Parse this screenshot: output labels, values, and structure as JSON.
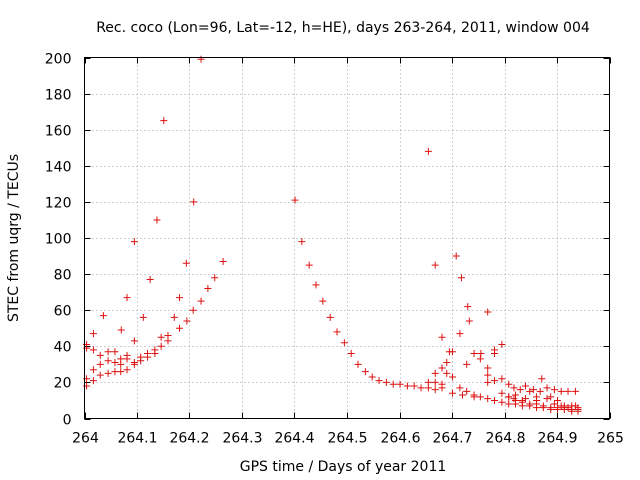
{
  "colors": {
    "points": "#dd1111",
    "axis": "#000000",
    "grid": "#a0a0a0",
    "background": "#ffffff"
  },
  "chart_data": {
    "type": "scatter",
    "title": "Rec. coco (Lon=96, Lat=-12, h=HE), days 263-264, 2011, window 004",
    "xlabel": "GPS time / Days of year 2011",
    "ylabel": "STEC from uqrg / TECUs",
    "xlim": [
      264,
      265
    ],
    "ylim": [
      0,
      200
    ],
    "grid": true,
    "marker": "+",
    "xticks": [
      {
        "value": 264,
        "label": "264"
      },
      {
        "value": 264.1,
        "label": "264.1"
      },
      {
        "value": 264.2,
        "label": "264.2"
      },
      {
        "value": 264.3,
        "label": "264.3"
      },
      {
        "value": 264.4,
        "label": "264.4"
      },
      {
        "value": 264.5,
        "label": "264.5"
      },
      {
        "value": 264.6,
        "label": "264.6"
      },
      {
        "value": 264.7,
        "label": "264.7"
      },
      {
        "value": 264.8,
        "label": "264.8"
      },
      {
        "value": 264.9,
        "label": "264.9"
      },
      {
        "value": 265,
        "label": "265"
      }
    ],
    "yticks": [
      {
        "value": 0,
        "label": "0"
      },
      {
        "value": 20,
        "label": "20"
      },
      {
        "value": 40,
        "label": "40"
      },
      {
        "value": 60,
        "label": "60"
      },
      {
        "value": 80,
        "label": "80"
      },
      {
        "value": 100,
        "label": "100"
      },
      {
        "value": 120,
        "label": "120"
      },
      {
        "value": 140,
        "label": "140"
      },
      {
        "value": 160,
        "label": "160"
      },
      {
        "value": 180,
        "label": "180"
      },
      {
        "value": 200,
        "label": "200"
      }
    ],
    "series": [
      {
        "name": "STEC",
        "points": [
          [
            264.004,
            41
          ],
          [
            264.017,
            47
          ],
          [
            264.036,
            57
          ],
          [
            264.07,
            49
          ],
          [
            264.081,
            67
          ],
          [
            264.095,
            98
          ],
          [
            264.112,
            56
          ],
          [
            264.125,
            77
          ],
          [
            264.138,
            110
          ],
          [
            264.151,
            165
          ],
          [
            264.181,
            67
          ],
          [
            264.194,
            86
          ],
          [
            264.208,
            120
          ],
          [
            264.222,
            199
          ],
          [
            264.004,
            39
          ],
          [
            264.017,
            38
          ],
          [
            264.03,
            35
          ],
          [
            264.045,
            37
          ],
          [
            264.058,
            37
          ],
          [
            264.069,
            33
          ],
          [
            264.081,
            35
          ],
          [
            264.095,
            43
          ],
          [
            264.107,
            34
          ],
          [
            264.12,
            36
          ],
          [
            264.134,
            38
          ],
          [
            264.146,
            40
          ],
          [
            264.159,
            46
          ],
          [
            264.171,
            56
          ],
          [
            264.181,
            50
          ],
          [
            264.195,
            54
          ],
          [
            264.207,
            60
          ],
          [
            264.222,
            65
          ],
          [
            264.235,
            72
          ],
          [
            264.248,
            78
          ],
          [
            264.264,
            87
          ],
          [
            264.004,
            22
          ],
          [
            264.017,
            27
          ],
          [
            264.03,
            30
          ],
          [
            264.045,
            32
          ],
          [
            264.058,
            31
          ],
          [
            264.069,
            30
          ],
          [
            264.081,
            33
          ],
          [
            264.095,
            31
          ],
          [
            264.107,
            32
          ],
          [
            264.12,
            34
          ],
          [
            264.134,
            36
          ],
          [
            264.146,
            45
          ],
          [
            264.159,
            43
          ],
          [
            264.004,
            18
          ],
          [
            264.017,
            21
          ],
          [
            264.03,
            24
          ],
          [
            264.045,
            25
          ],
          [
            264.058,
            26
          ],
          [
            264.069,
            26
          ],
          [
            264.081,
            27
          ],
          [
            264.095,
            30
          ],
          [
            264.401,
            121
          ],
          [
            264.414,
            98
          ],
          [
            264.428,
            85
          ],
          [
            264.441,
            74
          ],
          [
            264.454,
            65
          ],
          [
            264.468,
            56
          ],
          [
            264.481,
            48
          ],
          [
            264.495,
            42
          ],
          [
            264.508,
            36
          ],
          [
            264.521,
            30
          ],
          [
            264.535,
            26
          ],
          [
            264.548,
            23
          ],
          [
            264.561,
            21
          ],
          [
            264.575,
            20
          ],
          [
            264.588,
            19
          ],
          [
            264.601,
            19
          ],
          [
            264.615,
            18
          ],
          [
            264.628,
            18
          ],
          [
            264.641,
            17
          ],
          [
            264.655,
            17
          ],
          [
            264.668,
            16
          ],
          [
            264.655,
            148
          ],
          [
            264.668,
            85
          ],
          [
            264.681,
            45
          ],
          [
            264.695,
            37
          ],
          [
            264.708,
            90
          ],
          [
            264.718,
            78
          ],
          [
            264.73,
            62
          ],
          [
            264.733,
            54
          ],
          [
            264.755,
            36
          ],
          [
            264.768,
            59
          ],
          [
            264.781,
            38
          ],
          [
            264.795,
            41
          ],
          [
            264.655,
            20
          ],
          [
            264.668,
            25
          ],
          [
            264.681,
            28
          ],
          [
            264.69,
            31
          ],
          [
            264.701,
            37
          ],
          [
            264.715,
            47
          ],
          [
            264.728,
            30
          ],
          [
            264.742,
            36
          ],
          [
            264.754,
            33
          ],
          [
            264.768,
            28
          ],
          [
            264.781,
            36
          ],
          [
            264.795,
            22
          ],
          [
            264.808,
            19
          ],
          [
            264.818,
            17
          ],
          [
            264.83,
            16
          ],
          [
            264.84,
            18
          ],
          [
            264.855,
            16
          ],
          [
            264.868,
            15
          ],
          [
            264.881,
            17
          ],
          [
            264.895,
            16
          ],
          [
            264.908,
            15
          ],
          [
            264.921,
            15
          ],
          [
            264.935,
            15
          ],
          [
            264.668,
            20
          ],
          [
            264.681,
            19
          ],
          [
            264.69,
            25
          ],
          [
            264.701,
            23
          ],
          [
            264.715,
            17
          ],
          [
            264.728,
            15
          ],
          [
            264.742,
            13
          ],
          [
            264.754,
            12
          ],
          [
            264.768,
            11
          ],
          [
            264.781,
            10
          ],
          [
            264.795,
            9
          ],
          [
            264.808,
            8
          ],
          [
            264.821,
            8
          ],
          [
            264.834,
            7
          ],
          [
            264.848,
            7
          ],
          [
            264.861,
            6
          ],
          [
            264.874,
            6
          ],
          [
            264.888,
            5
          ],
          [
            264.901,
            5
          ],
          [
            264.914,
            5
          ],
          [
            264.928,
            4
          ],
          [
            264.94,
            4
          ],
          [
            264.681,
            17
          ],
          [
            264.701,
            14
          ],
          [
            264.72,
            13
          ],
          [
            264.742,
            12
          ],
          [
            264.768,
            24
          ],
          [
            264.768,
            20
          ],
          [
            264.781,
            21
          ],
          [
            264.795,
            14
          ],
          [
            264.808,
            12
          ],
          [
            264.821,
            10
          ],
          [
            264.834,
            9
          ],
          [
            264.848,
            8
          ],
          [
            264.861,
            8
          ],
          [
            264.874,
            7
          ],
          [
            264.888,
            6
          ],
          [
            264.901,
            6
          ],
          [
            264.914,
            6
          ],
          [
            264.928,
            5
          ],
          [
            264.94,
            5
          ],
          [
            264.808,
            12
          ],
          [
            264.818,
            11
          ],
          [
            264.834,
            10
          ],
          [
            264.848,
            15
          ],
          [
            264.861,
            10
          ],
          [
            264.871,
            22
          ],
          [
            264.888,
            12
          ],
          [
            264.901,
            10
          ],
          [
            264.914,
            7
          ],
          [
            264.928,
            7
          ],
          [
            264.94,
            6
          ],
          [
            264.821,
            13
          ],
          [
            264.84,
            11
          ],
          [
            264.861,
            12
          ],
          [
            264.881,
            11
          ],
          [
            264.895,
            8
          ],
          [
            264.908,
            7
          ],
          [
            264.921,
            6
          ],
          [
            264.935,
            7
          ]
        ]
      }
    ]
  }
}
